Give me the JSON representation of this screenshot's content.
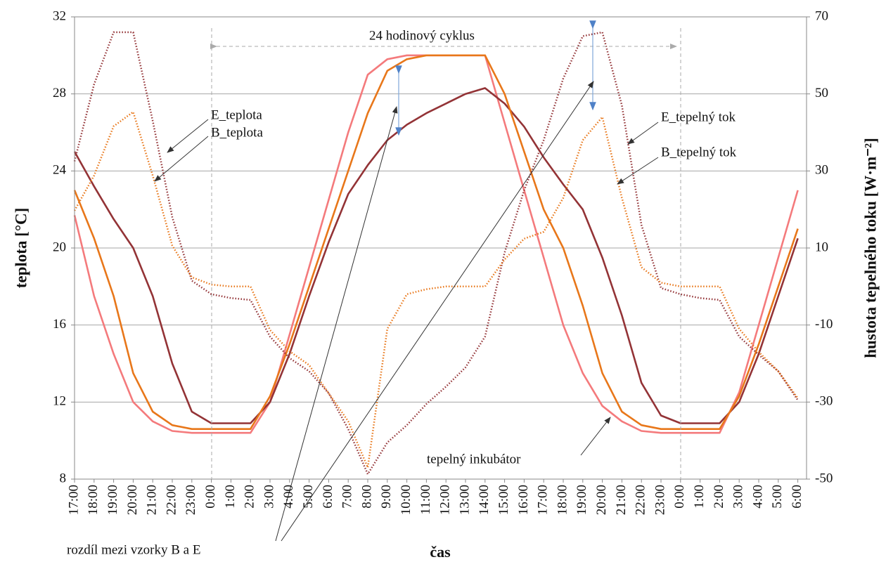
{
  "chart_data": {
    "type": "line",
    "x_label": "čas",
    "y_label": "teplota [°C]",
    "y2_label": "hustota tepelného toku [W·m⁻²]",
    "annotations": [
      "24 hodinový cyklus",
      "rozdíl mezi vzorky B a E"
    ],
    "categories": [
      "17:00",
      "18:00",
      "19:00",
      "20:00",
      "21:00",
      "22:00",
      "23:00",
      "0:00",
      "1:00",
      "2:00",
      "3:00",
      "4:00",
      "5:00",
      "6:00",
      "7:00",
      "8:00",
      "9:00",
      "10:00",
      "11:00",
      "12:00",
      "13:00",
      "14:00",
      "15:00",
      "16:00",
      "17:00",
      "18:00",
      "19:00",
      "20:00",
      "21:00",
      "22:00",
      "23:00",
      "0:00",
      "1:00",
      "2:00",
      "3:00",
      "4:00",
      "5:00",
      "6:00"
    ],
    "ylim": [
      8,
      32
    ],
    "yticks": [
      8,
      12,
      16,
      20,
      24,
      28,
      32
    ],
    "y2lim": [
      -50,
      70
    ],
    "y2ticks": [
      -50,
      -30,
      -10,
      10,
      30,
      50,
      70
    ],
    "grid": true,
    "series": [
      {
        "name": "tepelný inkubátor",
        "color": "#f47a7c",
        "style": "solid",
        "values": [
          21.7,
          17.5,
          14.5,
          12,
          11,
          10.5,
          10.4,
          10.4,
          10.4,
          10.4,
          12,
          15.5,
          19,
          22.5,
          26,
          29,
          29.8,
          30,
          30,
          30,
          30,
          30,
          26.5,
          23,
          19.5,
          16,
          13.5,
          11.8,
          11,
          10.5,
          10.4,
          10.4,
          10.4,
          10.4,
          12.5,
          16,
          19.5,
          23
        ]
      },
      {
        "name": "E_teplota",
        "color": "#933336",
        "style": "solid",
        "values": [
          25,
          23.2,
          21.5,
          20,
          17.5,
          14,
          11.5,
          10.9,
          10.9,
          10.9,
          12,
          14.5,
          17.5,
          20.3,
          22.8,
          24.3,
          25.6,
          26.4,
          27,
          27.5,
          28,
          28.3,
          27.5,
          26.3,
          24.7,
          23.3,
          22,
          19.5,
          16.5,
          13,
          11.3,
          10.9,
          10.9,
          10.9,
          12,
          14.5,
          17.5,
          20.5
        ]
      },
      {
        "name": "B_teplota",
        "color": "#e8771a",
        "style": "solid",
        "values": [
          23,
          20.5,
          17.5,
          13.5,
          11.5,
          10.8,
          10.6,
          10.6,
          10.6,
          10.6,
          12.3,
          15,
          18,
          21,
          24,
          27,
          29.2,
          29.8,
          30,
          30,
          30,
          30,
          28,
          25,
          22,
          20,
          17,
          13.5,
          11.5,
          10.8,
          10.6,
          10.6,
          10.6,
          10.6,
          12.3,
          15,
          18,
          21
        ]
      },
      {
        "name": "E_tepelný tok",
        "color": "#933336",
        "style": "dotted",
        "axis": "y2",
        "values": [
          32.5,
          52.5,
          66,
          66,
          43,
          18,
          1.5,
          -2,
          -3,
          -3.5,
          -13,
          -18.6,
          -22,
          -27.7,
          -37,
          -48.7,
          -40.5,
          -36,
          -30.5,
          -26,
          -21,
          -13,
          8.8,
          25,
          38,
          54,
          65,
          66,
          47,
          16,
          -0.4,
          -2,
          -3,
          -3.5,
          -13,
          -17.7,
          -22,
          -29.5
        ]
      },
      {
        "name": "B_tepelný tok",
        "color": "#e8771a",
        "style": "dotted",
        "axis": "y2",
        "values": [
          19.7,
          28.8,
          41.6,
          45.3,
          28.8,
          10.6,
          2.4,
          0.5,
          0,
          0,
          -11.3,
          -16.8,
          -20.4,
          -27.7,
          -35,
          -47,
          -11,
          -2,
          -0.7,
          0,
          0,
          0,
          7,
          12.4,
          14.2,
          23,
          38,
          44,
          23,
          5,
          1,
          0,
          0,
          0,
          -11,
          -17,
          -22,
          -29
        ]
      }
    ]
  }
}
